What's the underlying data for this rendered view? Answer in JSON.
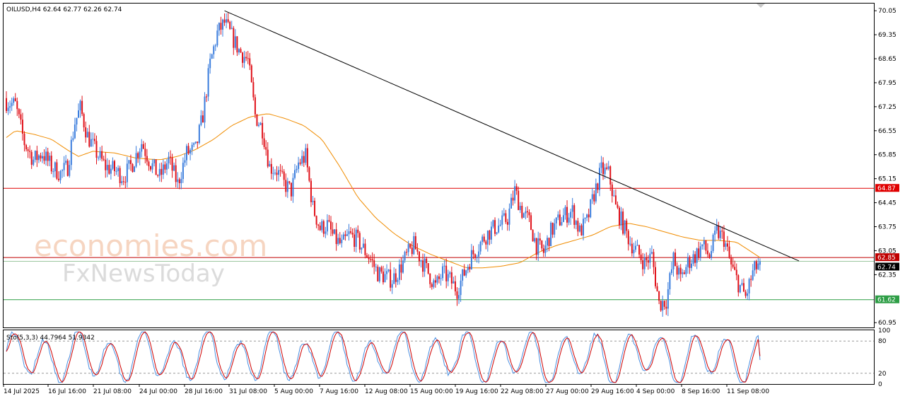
{
  "chart_data": [
    {
      "type": "candlestick",
      "symbol_header": "OILUSD,H4  62.64 62.77 62.26 62.74",
      "ylim": [
        60.81,
        70.26
      ],
      "y_ticks": [
        "70.05",
        "69.35",
        "68.65",
        "67.95",
        "67.25",
        "66.55",
        "65.85",
        "65.15",
        "64.45",
        "63.75",
        "63.05",
        "62.35",
        "60.95"
      ],
      "x_ticks": [
        "14 Jul 2025",
        "16 Jul 16:00",
        "21 Jul 08:00",
        "24 Jul 00:00",
        "28 Jul 16:00",
        "31 Jul 08:00",
        "5 Aug 00:00",
        "7 Aug 16:00",
        "12 Aug 08:00",
        "15 Aug 00:00",
        "19 Aug 16:00",
        "22 Aug 08:00",
        "27 Aug 00:00",
        "29 Aug 16:00",
        "4 Sep 00:00",
        "8 Sep 16:00",
        "11 Sep 08:00"
      ],
      "close_path": [
        [
          0,
          67.4
        ],
        [
          5,
          67.3
        ],
        [
          10,
          66.2
        ],
        [
          15,
          65.7
        ],
        [
          20,
          65.9
        ],
        [
          25,
          65.5
        ],
        [
          30,
          65.3
        ],
        [
          34,
          65.5
        ],
        [
          38,
          66.8
        ],
        [
          41,
          67.2
        ],
        [
          45,
          66.4
        ],
        [
          50,
          65.9
        ],
        [
          55,
          65.5
        ],
        [
          60,
          65.4
        ],
        [
          65,
          65.2
        ],
        [
          70,
          65.6
        ],
        [
          75,
          66.2
        ],
        [
          80,
          65.6
        ],
        [
          85,
          65.2
        ],
        [
          90,
          65.7
        ],
        [
          95,
          65.0
        ],
        [
          100,
          65.9
        ],
        [
          105,
          66.0
        ],
        [
          109,
          67.0
        ],
        [
          113,
          68.5
        ],
        [
          117,
          69.4
        ],
        [
          121,
          69.7
        ],
        [
          125,
          69.3
        ],
        [
          129,
          68.9
        ],
        [
          134,
          68.6
        ],
        [
          138,
          67.0
        ],
        [
          142,
          66.6
        ],
        [
          146,
          65.5
        ],
        [
          150,
          65.4
        ],
        [
          154,
          65.0
        ],
        [
          158,
          64.8
        ],
        [
          162,
          65.6
        ],
        [
          166,
          65.8
        ],
        [
          170,
          64.3
        ],
        [
          174,
          63.7
        ],
        [
          178,
          63.8
        ],
        [
          182,
          63.4
        ],
        [
          186,
          63.2
        ],
        [
          190,
          63.5
        ],
        [
          194,
          63.4
        ],
        [
          198,
          63.1
        ],
        [
          202,
          62.8
        ],
        [
          206,
          62.4
        ],
        [
          210,
          62.3
        ],
        [
          214,
          62.2
        ],
        [
          218,
          62.5
        ],
        [
          222,
          62.9
        ],
        [
          226,
          63.2
        ],
        [
          230,
          62.8
        ],
        [
          234,
          62.4
        ],
        [
          238,
          62.0
        ],
        [
          242,
          62.4
        ],
        [
          246,
          62.2
        ],
        [
          250,
          61.9
        ],
        [
          254,
          62.4
        ],
        [
          258,
          62.9
        ],
        [
          262,
          63.2
        ],
        [
          266,
          63.5
        ],
        [
          270,
          63.7
        ],
        [
          274,
          63.8
        ],
        [
          278,
          64.0
        ],
        [
          282,
          64.8
        ],
        [
          286,
          64.2
        ],
        [
          290,
          63.9
        ],
        [
          294,
          63.2
        ],
        [
          298,
          63.0
        ],
        [
          302,
          63.6
        ],
        [
          306,
          63.9
        ],
        [
          310,
          64.1
        ],
        [
          314,
          64.2
        ],
        [
          318,
          63.6
        ],
        [
          322,
          63.9
        ],
        [
          326,
          64.7
        ],
        [
          330,
          65.4
        ],
        [
          334,
          65.3
        ],
        [
          338,
          64.3
        ],
        [
          342,
          63.8
        ],
        [
          346,
          63.3
        ],
        [
          350,
          63.0
        ],
        [
          354,
          62.7
        ],
        [
          358,
          62.9
        ],
        [
          362,
          61.5
        ],
        [
          366,
          61.6
        ],
        [
          370,
          62.8
        ],
        [
          374,
          62.2
        ],
        [
          378,
          62.7
        ],
        [
          382,
          62.9
        ],
        [
          386,
          63.2
        ],
        [
          390,
          62.9
        ],
        [
          394,
          63.6
        ],
        [
          398,
          63.4
        ],
        [
          402,
          62.6
        ],
        [
          406,
          62.1
        ],
        [
          410,
          61.7
        ],
        [
          414,
          62.4
        ],
        [
          418,
          62.74
        ]
      ],
      "ma_path": [
        [
          0,
          66.35
        ],
        [
          5,
          66.55
        ],
        [
          15,
          66.45
        ],
        [
          25,
          66.3
        ],
        [
          35,
          65.95
        ],
        [
          40,
          65.8
        ],
        [
          48,
          65.95
        ],
        [
          60,
          65.9
        ],
        [
          72,
          65.75
        ],
        [
          85,
          65.7
        ],
        [
          95,
          65.8
        ],
        [
          105,
          66.0
        ],
        [
          115,
          66.3
        ],
        [
          125,
          66.7
        ],
        [
          135,
          66.95
        ],
        [
          145,
          67.05
        ],
        [
          155,
          66.9
        ],
        [
          165,
          66.7
        ],
        [
          175,
          66.3
        ],
        [
          185,
          65.5
        ],
        [
          195,
          64.6
        ],
        [
          205,
          64.0
        ],
        [
          215,
          63.55
        ],
        [
          225,
          63.2
        ],
        [
          235,
          62.95
        ],
        [
          245,
          62.75
        ],
        [
          255,
          62.55
        ],
        [
          265,
          62.55
        ],
        [
          275,
          62.6
        ],
        [
          285,
          62.7
        ],
        [
          295,
          63.0
        ],
        [
          305,
          63.2
        ],
        [
          315,
          63.35
        ],
        [
          325,
          63.5
        ],
        [
          335,
          63.75
        ],
        [
          345,
          63.85
        ],
        [
          355,
          63.75
        ],
        [
          365,
          63.6
        ],
        [
          375,
          63.45
        ],
        [
          385,
          63.35
        ],
        [
          395,
          63.35
        ],
        [
          405,
          63.3
        ],
        [
          418,
          62.85
        ]
      ],
      "trendline": {
        "from": [
          121,
          70.05
        ],
        "to": [
          440,
          62.75
        ]
      },
      "levels": [
        {
          "price": 64.87,
          "label": "64.87",
          "color": "#e00000"
        },
        {
          "price": 62.85,
          "label": "62.85",
          "color": "#c00000"
        },
        {
          "price": 61.62,
          "label": "61.62",
          "color": "#2e9e46"
        }
      ],
      "current_price": {
        "price": 62.74,
        "label": "62.74"
      },
      "colors": {
        "bull": "#3b7ddd",
        "bear": "#e0121a",
        "ma": "#f08c00",
        "trend": "#000000",
        "price_line": "#9cc79f"
      }
    },
    {
      "type": "line",
      "title": "Sto(5,3,3) 44.7964 51.9342",
      "ylim": [
        0,
        100
      ],
      "y_ticks": [
        "100",
        "80",
        "20",
        "0"
      ],
      "levels": [
        80,
        20
      ],
      "main_period": 18,
      "main_phase": 0.4,
      "colors": {
        "main": "#4a90e2",
        "signal": "#d00000",
        "level": "#9a9a9a"
      }
    }
  ],
  "watermark": {
    "line1": "economies.com",
    "line2": "FxNewsToday"
  }
}
